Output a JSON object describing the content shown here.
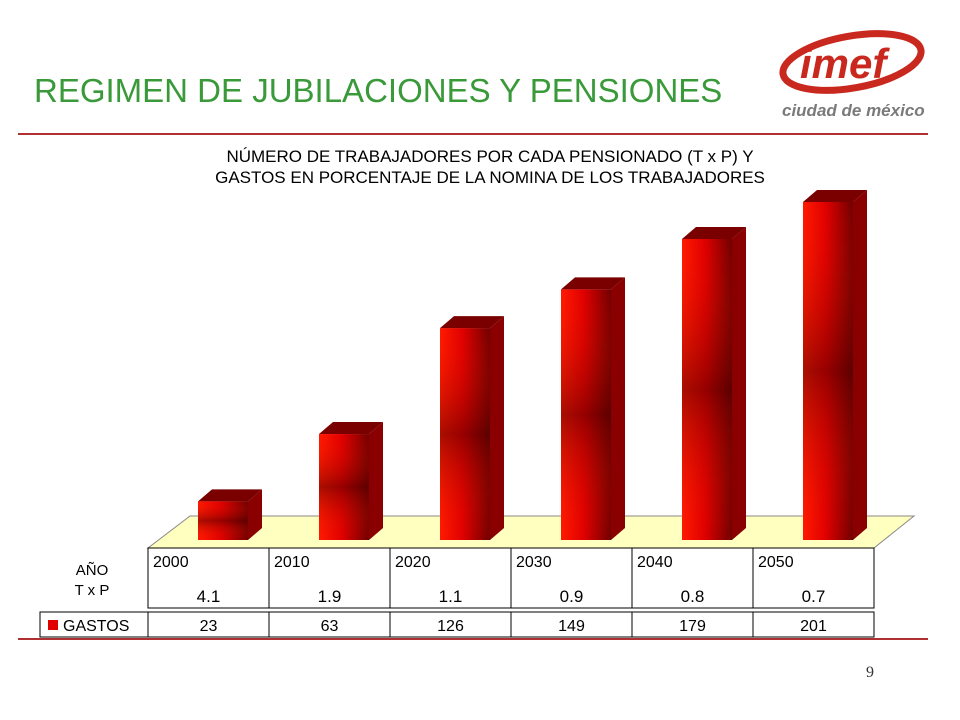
{
  "slide": {
    "title": "REGIMEN DE JUBILACIONES Y PENSIONES",
    "page_number": "9"
  },
  "logo": {
    "wordmark": "imef",
    "subtitle": "ciudad de méxico"
  },
  "colors": {
    "title": "#3a9a3a",
    "rule": "#b03030",
    "bar": "#e00000",
    "floor": "#ffffc0",
    "logo_red": "#c8281e",
    "logo_gray": "#7a7a7a"
  },
  "chart_data": {
    "type": "bar",
    "title_line1": "NÚMERO DE TRABAJADORES POR CADA PENSIONADO (T x P) Y",
    "title_line2": "GASTOS EN PORCENTAJE DE LA NOMINA DE LOS TRABAJADORES",
    "row_label_year": "AÑO",
    "row_label_txp": "T x P",
    "categories": [
      "2000",
      "2010",
      "2020",
      "2030",
      "2040",
      "2050"
    ],
    "txp": [
      "4.1",
      "1.9",
      "1.1",
      "0.9",
      "0.8",
      "0.7"
    ],
    "series": [
      {
        "name": "GASTOS",
        "values": [
          23,
          63,
          126,
          149,
          179,
          201
        ]
      }
    ],
    "ylim": [
      0,
      220
    ],
    "grid": false,
    "legend": "in data table"
  }
}
